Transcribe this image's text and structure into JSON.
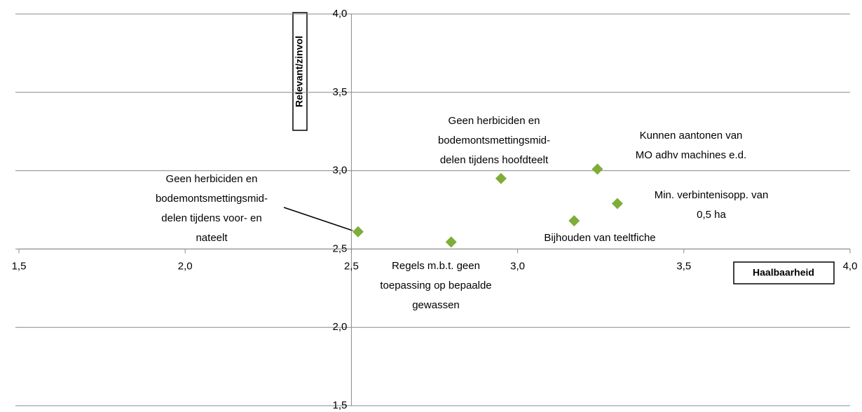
{
  "chart_data": {
    "type": "scatter",
    "x_label": "Haalbaarheid",
    "y_label": "Relevant/zinvol",
    "x": [
      2.52,
      2.8,
      2.95,
      3.17,
      3.24,
      3.3
    ],
    "values": [
      2.61,
      2.545,
      2.95,
      2.68,
      3.01,
      2.79
    ],
    "point_labels": [
      [
        "Geen herbiciden en",
        "bodemontsmettingsmid-",
        "delen tijdens voor- en",
        "nateelt"
      ],
      [
        "Regels m.b.t. geen",
        "toepassing op bepaalde",
        "gewassen"
      ],
      [
        "Geen herbiciden en",
        "bodemontsmettingsmid-",
        "delen tijdens hoofdteelt"
      ],
      [
        "Bijhouden van teeltfiche"
      ],
      [
        "Kunnen aantonen van",
        "MO adhv machines e.d."
      ],
      [
        "Min. verbintenisopp. van",
        "0,5 ha"
      ]
    ],
    "color": "#7fad3a",
    "xlim": [
      1.5,
      4.0
    ],
    "ylim": [
      1.5,
      4.0
    ],
    "xticks": [
      {
        "value": 1.5,
        "label": "1,5"
      },
      {
        "value": 2.0,
        "label": "2,0"
      },
      {
        "value": 2.5,
        "label": "2,5"
      },
      {
        "value": 3.0,
        "label": "3,0"
      },
      {
        "value": 3.5,
        "label": "3,5"
      },
      {
        "value": 4.0,
        "label": "4,0"
      }
    ],
    "yticks": [
      {
        "value": 1.5,
        "label": "1,5"
      },
      {
        "value": 2.0,
        "label": "2,0"
      },
      {
        "value": 2.5,
        "label": "2,5"
      },
      {
        "value": 3.0,
        "label": "3,0"
      },
      {
        "value": 3.5,
        "label": "3,5"
      },
      {
        "value": 4.0,
        "label": "4,0"
      }
    ],
    "axis_cross": [
      2.5,
      2.5
    ],
    "grid": true
  }
}
